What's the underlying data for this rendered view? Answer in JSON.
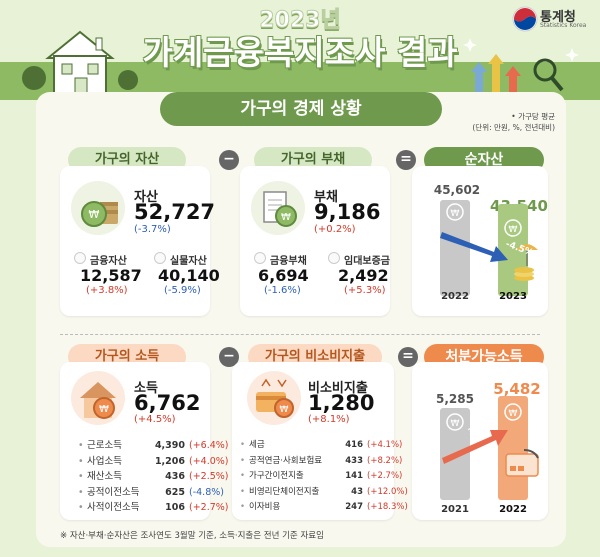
{
  "header": {
    "year": "2023년",
    "title": "가계금융복지조사 결과"
  },
  "logo": {
    "name": "통계청",
    "sub": "Statistics Korea"
  },
  "banner": "가구의 경제 상황",
  "unit_note": {
    "line1": "• 가구당 평균",
    "line2": "(단위: 만원, %, 전년대비)"
  },
  "operators": {
    "minus": "−",
    "equals": "="
  },
  "assets": {
    "pill": "가구의 자산",
    "label": "자산",
    "value": "52,727",
    "change": "(-3.7%)",
    "sub": [
      {
        "label": "금융자산",
        "value": "12,587",
        "change": "(+3.8%)"
      },
      {
        "label": "실물자산",
        "value": "40,140",
        "change": "(-5.9%)"
      }
    ]
  },
  "debt": {
    "pill": "가구의 부채",
    "label": "부채",
    "value": "9,186",
    "change": "(+0.2%)",
    "sub": [
      {
        "label": "금융부채",
        "value": "6,694",
        "change": "(-1.6%)"
      },
      {
        "label": "임대보증금",
        "value": "2,492",
        "change": "(+5.3%)"
      }
    ]
  },
  "net_assets": {
    "pill": "순자산",
    "prev": {
      "year": "2022",
      "value": "45,602"
    },
    "curr": {
      "year": "2023",
      "value": "43,540"
    },
    "change": "-4.5%",
    "ratio": 0.9548
  },
  "income": {
    "pill": "가구의 소득",
    "label": "소득",
    "value": "6,762",
    "change": "(+4.5%)",
    "items": [
      {
        "name": "근로소득",
        "value": "4,390",
        "change": "(+6.4%)"
      },
      {
        "name": "사업소득",
        "value": "1,206",
        "change": "(+4.0%)"
      },
      {
        "name": "재산소득",
        "value": "436",
        "change": "(+2.5%)"
      },
      {
        "name": "공적이전소득",
        "value": "625",
        "change": "(-4.8%)"
      },
      {
        "name": "사적이전소득",
        "value": "106",
        "change": "(+2.7%)"
      }
    ]
  },
  "nonconsumption": {
    "pill": "가구의 비소비지출",
    "label": "비소비지출",
    "value": "1,280",
    "change": "(+8.1%)",
    "items": [
      {
        "name": "세금",
        "value": "416",
        "change": "(+4.1%)"
      },
      {
        "name": "공적연금·사회보험료",
        "value": "433",
        "change": "(+8.2%)"
      },
      {
        "name": "가구간이전지출",
        "value": "141",
        "change": "(+2.7%)"
      },
      {
        "name": "비영리단체이전지출",
        "value": "43",
        "change": "(+12.0%)"
      },
      {
        "name": "이자비용",
        "value": "247",
        "change": "(+18.3%)"
      }
    ]
  },
  "disposable": {
    "pill": "처분가능소득",
    "prev": {
      "year": "2021",
      "value": "5,285"
    },
    "curr": {
      "year": "2022",
      "value": "5,482"
    },
    "change": "3.7%",
    "ratio": 1.037
  },
  "footnote": "※ 자산·부채·순자산은 조사연도 3월말 기준, 소득·지출은 전년 기준 자료임",
  "colors": {
    "green": "#6f9a4d",
    "orange": "#ef8a4d",
    "blue": "#2d5fb5",
    "red": "#d23a2a"
  }
}
